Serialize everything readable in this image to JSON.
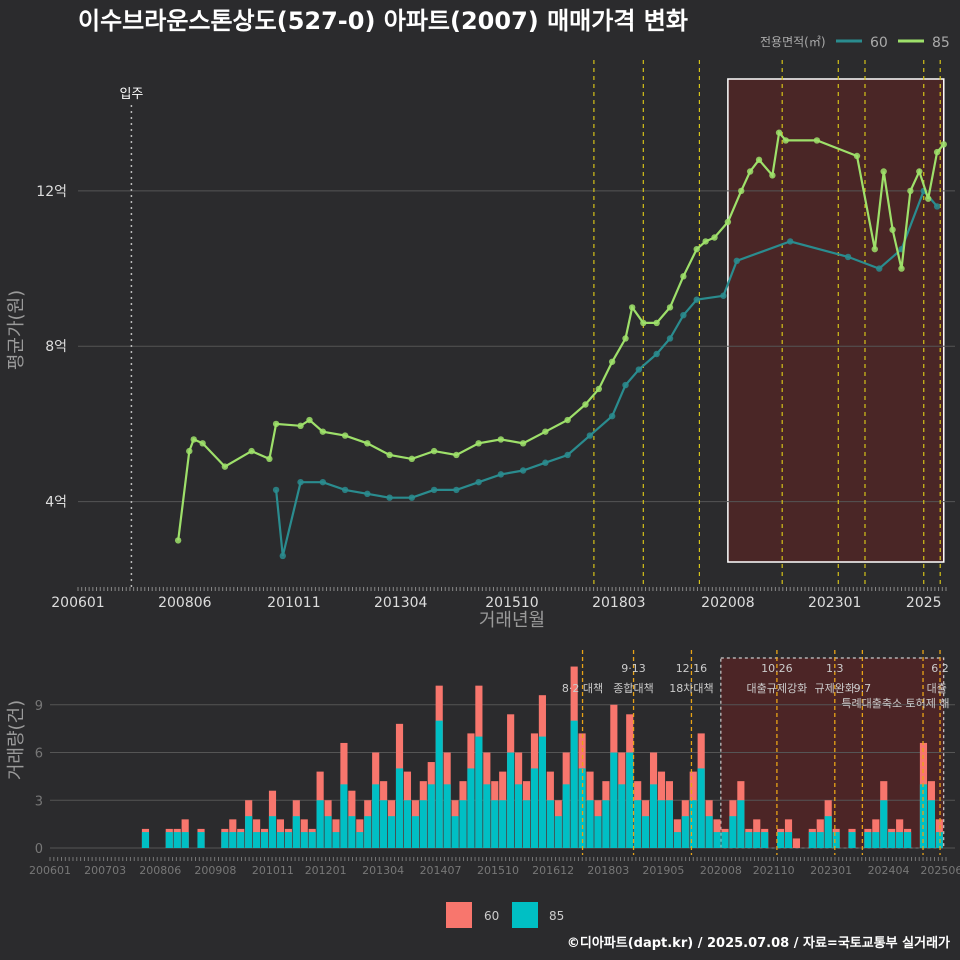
{
  "title": "이수브라운스톤상도(527-0) 아파트(2007) 매매가격 변화",
  "footer": "©디아파트(dapt.kr) / 2025.07.08 / 자료=국토교통부 실거래가",
  "colors": {
    "bg": "#2b2b2d",
    "s60": "#2a8c8f",
    "s85": "#9ee06a",
    "bar60": "#f8766d",
    "bar85": "#00bfc4",
    "policy": "#d4c219",
    "box": "#5b2323"
  },
  "chart_data": [
    {
      "type": "line",
      "xlabel": "거래년월",
      "ylabel": "평균가(원)",
      "x_ticks": [
        "200601",
        "200806",
        "201011",
        "201304",
        "201510",
        "201803",
        "202008",
        "202301",
        "2025"
      ],
      "y_ticks": [
        "4억",
        "8억",
        "12억"
      ],
      "ylim": [
        1.8,
        15.5
      ],
      "legend_title": "전용면적(㎡)",
      "legend_position": "top-right",
      "annotation": "입주",
      "annotation_x": 2007.2,
      "policy_lines": [
        2017.59,
        2018.7,
        2019.96,
        2021.82,
        2023.08,
        2023.68,
        2025.0,
        2025.37
      ],
      "highlight_range": [
        2020.6,
        2025.45
      ],
      "series": [
        {
          "name": "85",
          "x": [
            2008.25,
            2008.5,
            2008.6,
            2008.8,
            2009.3,
            2009.9,
            2010.3,
            2010.45,
            2011.0,
            2011.2,
            2011.5,
            2012.0,
            2012.5,
            2013.0,
            2013.5,
            2014.0,
            2014.5,
            2015.0,
            2015.5,
            2016.0,
            2016.5,
            2017.0,
            2017.4,
            2017.7,
            2018.0,
            2018.3,
            2018.45,
            2018.7,
            2019.0,
            2019.3,
            2019.6,
            2019.9,
            2020.1,
            2020.3,
            2020.6,
            2020.9,
            2021.1,
            2021.3,
            2021.6,
            2021.75,
            2021.9,
            2022.6,
            2023.5,
            2023.9,
            2024.1,
            2024.3,
            2024.5,
            2024.7,
            2024.9,
            2025.1,
            2025.3,
            2025.45
          ],
          "values": [
            3.0,
            5.3,
            5.6,
            5.5,
            4.9,
            5.3,
            5.1,
            6.0,
            5.95,
            6.1,
            5.8,
            5.7,
            5.5,
            5.2,
            5.1,
            5.3,
            5.2,
            5.5,
            5.6,
            5.5,
            5.8,
            6.1,
            6.5,
            6.9,
            7.6,
            8.2,
            9.0,
            8.6,
            8.6,
            9.0,
            9.8,
            10.5,
            10.7,
            10.8,
            11.2,
            12.0,
            12.5,
            12.8,
            12.4,
            13.5,
            13.3,
            13.3,
            12.9,
            10.5,
            12.5,
            11.0,
            10.0,
            12.0,
            12.5,
            11.8,
            13.0,
            13.2
          ]
        },
        {
          "name": "60",
          "x": [
            2010.45,
            2010.6,
            2011.0,
            2011.5,
            2012.0,
            2012.5,
            2013.0,
            2013.5,
            2014.0,
            2014.5,
            2015.0,
            2015.5,
            2016.0,
            2016.5,
            2017.0,
            2017.5,
            2018.0,
            2018.3,
            2018.6,
            2019.0,
            2019.3,
            2019.6,
            2019.9,
            2020.5,
            2020.8,
            2022.0,
            2023.3,
            2024.0,
            2024.5,
            2025.0,
            2025.3
          ],
          "values": [
            4.3,
            2.6,
            4.5,
            4.5,
            4.3,
            4.2,
            4.1,
            4.1,
            4.3,
            4.3,
            4.5,
            4.7,
            4.8,
            5.0,
            5.2,
            5.7,
            6.2,
            7.0,
            7.4,
            7.8,
            8.2,
            8.8,
            9.2,
            9.3,
            10.2,
            10.7,
            10.3,
            10.0,
            10.5,
            12.0,
            11.6
          ]
        }
      ]
    },
    {
      "type": "bar",
      "ylabel": "거래량(건)",
      "x_ticks": [
        "200601",
        "200703",
        "200806",
        "200908",
        "201011",
        "201201",
        "201304",
        "201407",
        "201510",
        "201612",
        "201803",
        "201905",
        "202008",
        "202110",
        "202301",
        "202404",
        "202506"
      ],
      "y_ticks": [
        "0",
        "3",
        "6",
        "9"
      ],
      "ylim": [
        0,
        12
      ],
      "policy_labels": [
        {
          "date": "8·2 대책",
          "x": 2017.59,
          "row": 2
        },
        {
          "date": "9·13",
          "x": 2018.7,
          "row": 1
        },
        {
          "date": "종합대책",
          "x": 2018.7,
          "row": 2
        },
        {
          "date": "12·16",
          "x": 2019.96,
          "row": 1
        },
        {
          "date": "18차대책",
          "x": 2019.96,
          "row": 2
        },
        {
          "date": "10.26",
          "x": 2021.82,
          "row": 1
        },
        {
          "date": "대출규제강화",
          "x": 2021.82,
          "row": 2
        },
        {
          "date": "1.3",
          "x": 2023.08,
          "row": 1
        },
        {
          "date": "규제완화",
          "x": 2023.08,
          "row": 2
        },
        {
          "date": "9.7",
          "x": 2023.68,
          "row": 2
        },
        {
          "date": "특례대출축소 토허제 해",
          "x": 2024.4,
          "row": 3
        },
        {
          "date": "6.2",
          "x": 2025.37,
          "row": 1
        },
        {
          "date": "대출",
          "x": 2025.3,
          "row": 2
        }
      ],
      "series": [
        {
          "name": "60",
          "values": [
            1,
            0,
            0,
            1,
            1,
            2,
            0,
            1,
            0,
            0,
            1,
            2,
            1,
            3,
            2,
            1,
            4,
            2,
            1,
            3,
            2,
            1,
            5,
            3,
            2,
            7,
            4,
            2,
            3,
            6,
            4,
            3,
            8,
            5,
            3,
            4,
            5,
            9,
            6,
            3,
            4,
            7,
            10,
            6,
            4,
            5,
            8,
            6,
            4,
            7,
            9,
            5,
            3,
            6,
            11,
            7,
            5,
            3,
            4,
            9,
            6,
            8,
            4,
            3,
            6,
            5,
            4,
            2,
            3,
            5,
            7,
            3,
            2,
            1,
            3,
            4,
            1,
            2,
            1,
            0,
            1,
            2,
            1,
            0,
            1,
            2,
            3,
            1,
            0,
            1,
            0,
            1,
            2,
            4,
            1,
            2,
            1,
            0,
            7,
            4,
            2
          ]
        },
        {
          "name": "85",
          "values": [
            1,
            0,
            0,
            1,
            1,
            1,
            0,
            1,
            0,
            0,
            1,
            1,
            1,
            2,
            1,
            1,
            2,
            1,
            1,
            2,
            1,
            1,
            3,
            2,
            1,
            4,
            2,
            1,
            2,
            4,
            3,
            2,
            5,
            3,
            2,
            3,
            4,
            8,
            4,
            2,
            3,
            5,
            7,
            4,
            3,
            3,
            6,
            4,
            3,
            5,
            7,
            3,
            2,
            4,
            8,
            5,
            3,
            2,
            3,
            6,
            4,
            6,
            3,
            2,
            4,
            3,
            3,
            1,
            2,
            3,
            5,
            2,
            1,
            1,
            2,
            3,
            1,
            1,
            1,
            0,
            1,
            1,
            0,
            0,
            1,
            1,
            2,
            1,
            0,
            1,
            0,
            1,
            1,
            3,
            1,
            1,
            1,
            0,
            4,
            3,
            1
          ]
        }
      ],
      "legend": [
        "60",
        "85"
      ]
    }
  ]
}
